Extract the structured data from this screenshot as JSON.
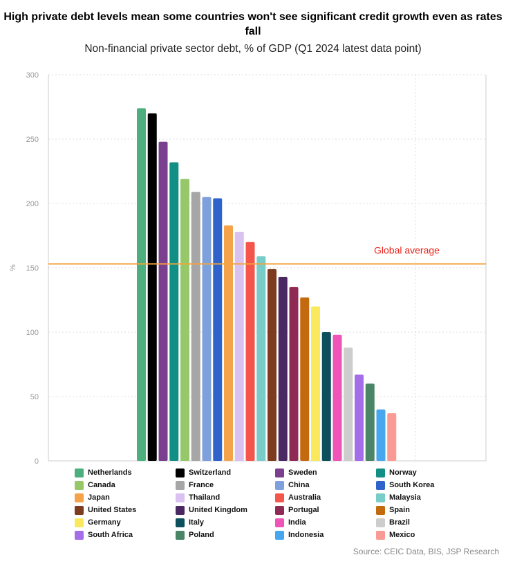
{
  "title": "High private debt levels mean some countries won't see significant credit growth even as rates fall",
  "subtitle": "Non-financial private sector debt, % of GDP (Q1 2024 latest data point)",
  "source": "Source: CEIC Data, BIS, JSP Research",
  "chart_data": {
    "type": "bar",
    "title": "High private debt levels mean some countries won't see significant credit growth even as rates fall",
    "subtitle": "Non-financial private sector debt, % of GDP (Q1 2024 latest data point)",
    "xlabel": "",
    "ylabel": "%",
    "ylim": [
      0,
      300
    ],
    "yticks": [
      0,
      50,
      100,
      150,
      200,
      250,
      300
    ],
    "grid": true,
    "legend_position": "bottom",
    "categories": [
      "Netherlands",
      "Switzerland",
      "Sweden",
      "Norway",
      "Canada",
      "France",
      "China",
      "South Korea",
      "Japan",
      "Thailand",
      "Australia",
      "Malaysia",
      "United States",
      "United Kingdom",
      "Portugal",
      "Spain",
      "Germany",
      "Italy",
      "India",
      "Brazil",
      "South Africa",
      "Poland",
      "Indonesia",
      "Mexico"
    ],
    "values": [
      274,
      270,
      248,
      232,
      219,
      209,
      205,
      204,
      183,
      178,
      170,
      159,
      149,
      143,
      135,
      127,
      120,
      100,
      98,
      88,
      67,
      60,
      40,
      37
    ],
    "colors": [
      "#4caf7d",
      "#000000",
      "#7b3f8f",
      "#128f85",
      "#96c86a",
      "#a6a6a6",
      "#7ea0dc",
      "#2f63cc",
      "#f4a34a",
      "#d9c2ef",
      "#f4564c",
      "#78cdc8",
      "#7d3b1f",
      "#4a2963",
      "#8f2a55",
      "#c46a0e",
      "#fae95c",
      "#0d4f5c",
      "#ee55b6",
      "#cdcdcd",
      "#a46ee8",
      "#4a8567",
      "#46a6ee",
      "#f99a94"
    ],
    "reference_line": {
      "label": "Global average",
      "value": 153,
      "color": "#f5a23c",
      "label_color": "#e8231b"
    }
  }
}
